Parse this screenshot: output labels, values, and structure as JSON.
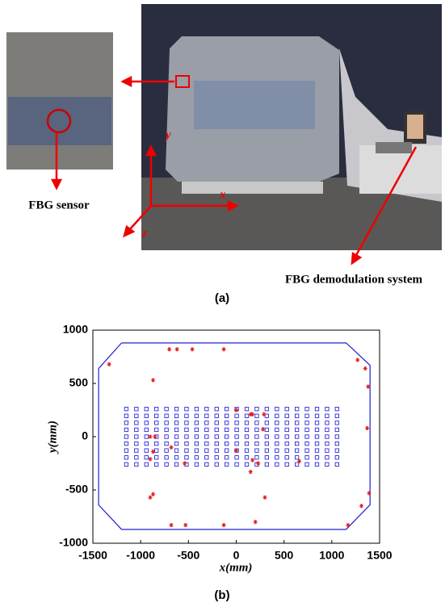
{
  "figure_a": {
    "label": "(a)",
    "sensor_label": "FBG sensor",
    "system_label": "FBG demodulation system",
    "axis_x": "x",
    "axis_y": "y",
    "axis_z": "z"
  },
  "chart_data": {
    "type": "scatter",
    "label": "(b)",
    "xlabel": "x(mm)",
    "ylabel": "y(mm)",
    "xlim": [
      -1500,
      1500
    ],
    "ylim": [
      -1000,
      1000
    ],
    "xticks": [
      -1500,
      -1000,
      -500,
      0,
      500,
      1000,
      1500
    ],
    "yticks": [
      -1000,
      -500,
      0,
      500,
      1000
    ],
    "series": [
      {
        "style": "line",
        "color": "#1f1fd0",
        "x": [
          -1200,
          1150,
          1400,
          1400,
          1150,
          -1200,
          -1440,
          -1440,
          -1200
        ],
        "y": [
          880,
          880,
          670,
          -640,
          -870,
          -870,
          -640,
          640,
          880
        ]
      },
      {
        "style": "square",
        "color": "#2a2ad8",
        "x": [
          -1150,
          -1045,
          -940,
          -835,
          -730,
          -625,
          -520,
          -415,
          -310,
          -205,
          -100,
          5,
          110,
          215,
          320,
          425,
          530,
          635,
          740,
          845,
          950,
          1055,
          -1150,
          -1045,
          -940,
          -835,
          -730,
          -625,
          -520,
          -415,
          -310,
          -205,
          -100,
          5,
          110,
          215,
          320,
          425,
          530,
          635,
          740,
          845,
          950,
          1055,
          -1150,
          -1045,
          -940,
          -835,
          -730,
          -625,
          -520,
          -415,
          -310,
          -205,
          -100,
          5,
          110,
          215,
          320,
          425,
          530,
          635,
          740,
          845,
          950,
          1055,
          -1150,
          -1045,
          -940,
          -835,
          -730,
          -625,
          -520,
          -415,
          -310,
          -205,
          -100,
          5,
          110,
          215,
          320,
          425,
          530,
          635,
          740,
          845,
          950,
          1055,
          -1150,
          -1045,
          -940,
          -835,
          -730,
          -625,
          -520,
          -415,
          -310,
          -205,
          -100,
          5,
          110,
          215,
          320,
          425,
          530,
          635,
          740,
          845,
          950,
          1055,
          -1150,
          -1045,
          -940,
          -835,
          -730,
          -625,
          -520,
          -415,
          -310,
          -205,
          -100,
          5,
          110,
          215,
          320,
          425,
          530,
          635,
          740,
          845,
          950,
          1055,
          -1150,
          -1045,
          -940,
          -835,
          -730,
          -625,
          -520,
          -415,
          -310,
          -205,
          -100,
          5,
          110,
          215,
          320,
          425,
          530,
          635,
          740,
          845,
          950,
          1055,
          -1150,
          -1045,
          -940,
          -835,
          -730,
          -625,
          -520,
          -415,
          -310,
          -205,
          -100,
          5,
          110,
          215,
          320,
          425,
          530,
          635,
          740,
          845,
          950,
          1055,
          -1150,
          -1045,
          -940,
          -835,
          -730,
          -625,
          -520,
          -415,
          -310,
          -205,
          -100,
          5,
          110,
          215,
          320,
          425,
          530,
          635,
          740,
          845,
          950,
          1055
        ],
        "y": [
          260,
          260,
          260,
          260,
          260,
          260,
          260,
          260,
          260,
          260,
          260,
          260,
          260,
          260,
          260,
          260,
          260,
          260,
          260,
          260,
          260,
          260,
          195,
          195,
          195,
          195,
          195,
          195,
          195,
          195,
          195,
          195,
          195,
          195,
          195,
          195,
          195,
          195,
          195,
          195,
          195,
          195,
          195,
          195,
          130,
          130,
          130,
          130,
          130,
          130,
          130,
          130,
          130,
          130,
          130,
          130,
          130,
          130,
          130,
          130,
          130,
          130,
          130,
          130,
          130,
          130,
          65,
          65,
          65,
          65,
          65,
          65,
          65,
          65,
          65,
          65,
          65,
          65,
          65,
          65,
          65,
          65,
          65,
          65,
          65,
          65,
          65,
          65,
          0,
          0,
          0,
          0,
          0,
          0,
          0,
          0,
          0,
          0,
          0,
          0,
          0,
          0,
          0,
          0,
          0,
          0,
          0,
          0,
          0,
          0,
          -65,
          -65,
          -65,
          -65,
          -65,
          -65,
          -65,
          -65,
          -65,
          -65,
          -65,
          -65,
          -65,
          -65,
          -65,
          -65,
          -65,
          -65,
          -65,
          -65,
          -65,
          -65,
          -130,
          -130,
          -130,
          -130,
          -130,
          -130,
          -130,
          -130,
          -130,
          -130,
          -130,
          -130,
          -130,
          -130,
          -130,
          -130,
          -130,
          -130,
          -130,
          -130,
          -130,
          -130,
          -195,
          -195,
          -195,
          -195,
          -195,
          -195,
          -195,
          -195,
          -195,
          -195,
          -195,
          -195,
          -195,
          -195,
          -195,
          -195,
          -195,
          -195,
          -195,
          -195,
          -195,
          -195,
          -260,
          -260,
          -260,
          -260,
          -260,
          -260,
          -260,
          -260,
          -260,
          -260,
          -260,
          -260,
          -260,
          -260,
          -260,
          -260,
          -260,
          -260,
          -260,
          -260,
          -260,
          -260
        ]
      },
      {
        "style": "asterisk",
        "color": "#e02020",
        "x": [
          -1330,
          -700,
          -620,
          -460,
          -130,
          -870,
          1270,
          1350,
          1380,
          1370,
          1390,
          1310,
          1170,
          -870,
          -900,
          -680,
          -530,
          -130,
          200,
          300,
          -900,
          -850,
          -680,
          -870,
          -900,
          -540,
          0,
          150,
          170,
          290,
          280,
          0,
          170,
          230,
          150,
          660
        ],
        "y": [
          680,
          820,
          820,
          820,
          820,
          530,
          720,
          640,
          470,
          80,
          -530,
          -650,
          -830,
          -540,
          -570,
          -830,
          -830,
          -830,
          -800,
          -570,
          0,
          0,
          -100,
          -140,
          -210,
          -250,
          250,
          210,
          210,
          210,
          70,
          -130,
          -220,
          -250,
          -330,
          -230
        ]
      }
    ]
  }
}
